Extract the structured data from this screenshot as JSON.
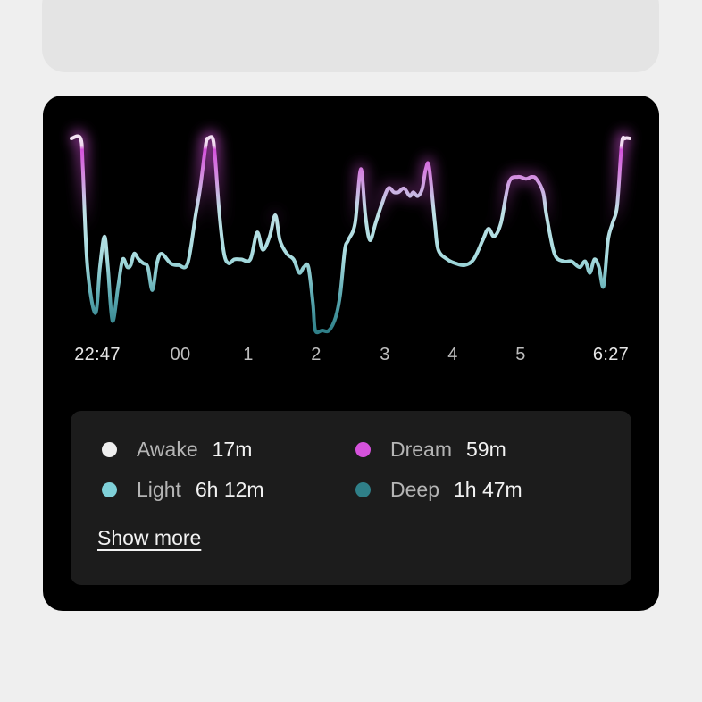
{
  "chart_data": {
    "type": "line",
    "x_tick_labels": [
      "22:47",
      "00",
      "1",
      "2",
      "3",
      "4",
      "5",
      "6:27"
    ],
    "y_meaning": "sleep stage level (0 = deepest, 1 = awake)",
    "stage_colors": {
      "awake": "#eeeeee",
      "dream": "#d552dc",
      "light": "#7fd0d8",
      "deep": "#2f7f88"
    },
    "points": [
      [
        "22:24",
        1.0
      ],
      [
        "22:32",
        1.0
      ],
      [
        "22:34",
        0.84
      ],
      [
        "22:38",
        0.33
      ],
      [
        "22:45",
        0.09
      ],
      [
        "22:49",
        0.33
      ],
      [
        "22:53",
        0.49
      ],
      [
        "22:56",
        0.33
      ],
      [
        "23:00",
        0.05
      ],
      [
        "23:05",
        0.23
      ],
      [
        "23:09",
        0.37
      ],
      [
        "23:13",
        0.33
      ],
      [
        "23:16",
        0.34
      ],
      [
        "23:19",
        0.4
      ],
      [
        "23:23",
        0.37
      ],
      [
        "23:27",
        0.35
      ],
      [
        "23:31",
        0.33
      ],
      [
        "23:35",
        0.21
      ],
      [
        "23:39",
        0.35
      ],
      [
        "23:43",
        0.4
      ],
      [
        "23:51",
        0.35
      ],
      [
        "23:58",
        0.34
      ],
      [
        "00:06",
        0.35
      ],
      [
        "00:13",
        0.6
      ],
      [
        "00:17",
        0.74
      ],
      [
        "00:22",
        0.97
      ],
      [
        "00:24",
        1.0
      ],
      [
        "00:28",
        1.0
      ],
      [
        "00:30",
        0.91
      ],
      [
        "00:34",
        0.6
      ],
      [
        "00:38",
        0.4
      ],
      [
        "00:42",
        0.35
      ],
      [
        "00:47",
        0.37
      ],
      [
        "00:53",
        0.37
      ],
      [
        "01:01",
        0.37
      ],
      [
        "01:07",
        0.51
      ],
      [
        "01:12",
        0.42
      ],
      [
        "01:18",
        0.49
      ],
      [
        "01:23",
        0.6
      ],
      [
        "01:27",
        0.47
      ],
      [
        "01:33",
        0.4
      ],
      [
        "01:39",
        0.37
      ],
      [
        "01:44",
        0.3
      ],
      [
        "01:48",
        0.33
      ],
      [
        "01:52",
        0.33
      ],
      [
        "01:56",
        0.14
      ],
      [
        "01:58",
        0.0
      ],
      [
        "02:04",
        0.0
      ],
      [
        "02:10",
        0.0
      ],
      [
        "02:16",
        0.07
      ],
      [
        "02:20",
        0.19
      ],
      [
        "02:24",
        0.42
      ],
      [
        "02:27",
        0.47
      ],
      [
        "02:33",
        0.56
      ],
      [
        "02:38",
        0.84
      ],
      [
        "02:42",
        0.6
      ],
      [
        "02:46",
        0.47
      ],
      [
        "02:51",
        0.56
      ],
      [
        "02:56",
        0.65
      ],
      [
        "03:02",
        0.74
      ],
      [
        "03:07",
        0.72
      ],
      [
        "03:11",
        0.72
      ],
      [
        "03:16",
        0.74
      ],
      [
        "03:21",
        0.7
      ],
      [
        "03:24",
        0.72
      ],
      [
        "03:28",
        0.7
      ],
      [
        "03:32",
        0.74
      ],
      [
        "03:35",
        0.84
      ],
      [
        "03:38",
        0.85
      ],
      [
        "03:43",
        0.56
      ],
      [
        "03:46",
        0.42
      ],
      [
        "03:54",
        0.37
      ],
      [
        "04:01",
        0.35
      ],
      [
        "04:09",
        0.34
      ],
      [
        "04:17",
        0.37
      ],
      [
        "04:25",
        0.47
      ],
      [
        "04:30",
        0.53
      ],
      [
        "04:35",
        0.49
      ],
      [
        "04:41",
        0.56
      ],
      [
        "04:48",
        0.77
      ],
      [
        "04:56",
        0.8
      ],
      [
        "05:03",
        0.79
      ],
      [
        "05:08",
        0.8
      ],
      [
        "05:12",
        0.79
      ],
      [
        "05:18",
        0.72
      ],
      [
        "05:21",
        0.6
      ],
      [
        "05:28",
        0.4
      ],
      [
        "05:36",
        0.36
      ],
      [
        "05:43",
        0.36
      ],
      [
        "05:50",
        0.33
      ],
      [
        "05:55",
        0.36
      ],
      [
        "05:59",
        0.3
      ],
      [
        "06:03",
        0.37
      ],
      [
        "06:07",
        0.33
      ],
      [
        "06:11",
        0.23
      ],
      [
        "06:15",
        0.47
      ],
      [
        "06:19",
        0.56
      ],
      [
        "06:23",
        0.65
      ],
      [
        "06:27",
        0.97
      ],
      [
        "06:30",
        1.0
      ],
      [
        "06:34",
        1.0
      ]
    ]
  },
  "legend": {
    "items": [
      {
        "label": "Awake",
        "value": "17m",
        "color": "#eeeeee"
      },
      {
        "label": "Dream",
        "value": "59m",
        "color": "#d552dc"
      },
      {
        "label": "Light",
        "value": "6h 12m",
        "color": "#7fd0d8"
      },
      {
        "label": "Deep",
        "value": "1h 47m",
        "color": "#2f7f88"
      }
    ],
    "show_more": "Show more"
  }
}
